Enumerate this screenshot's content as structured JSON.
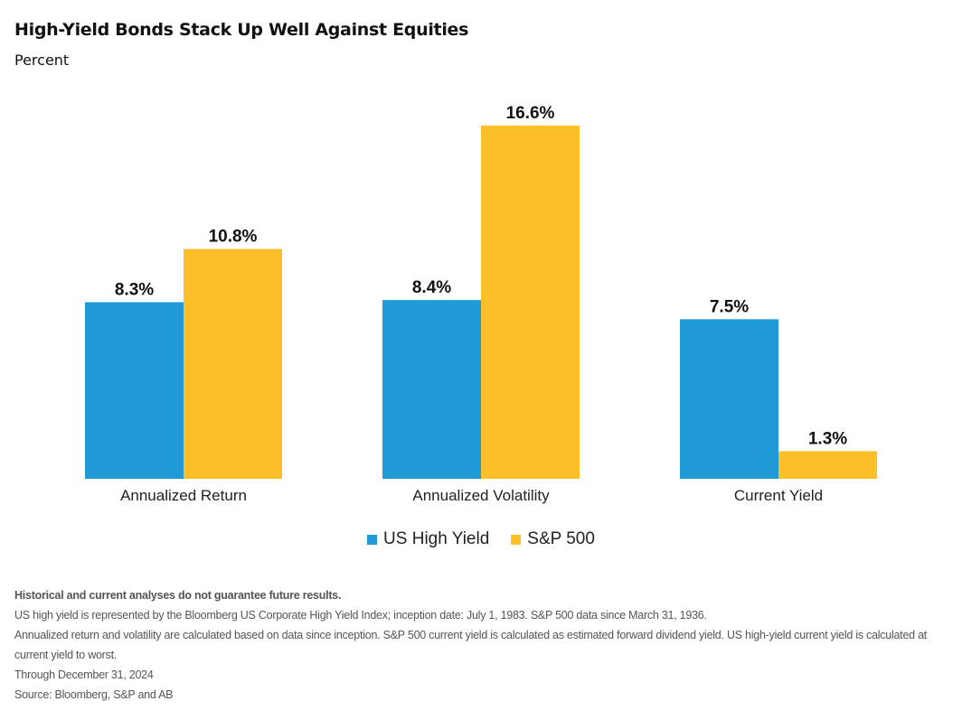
{
  "chart_data": {
    "type": "bar",
    "title": "High-Yield Bonds Stack Up Well Against Equities",
    "subtitle": "Percent",
    "categories": [
      "Annualized Return",
      "Annualized Volatility",
      "Current Yield"
    ],
    "series": [
      {
        "name": "US High Yield",
        "color": "#1f9ad6",
        "values": [
          8.3,
          8.4,
          7.5
        ],
        "labels": [
          "8.3%",
          "8.4%",
          "7.5%"
        ]
      },
      {
        "name": "S&P 500",
        "color": "#fbbf2a",
        "values": [
          10.8,
          16.6,
          1.3
        ],
        "labels": [
          "10.8%",
          "16.6%",
          "1.3%"
        ]
      }
    ],
    "ylim": [
      0,
      16.6
    ],
    "grid": false,
    "legend": "bottom-center"
  },
  "notes": [
    "Historical and current analyses do not guarantee future results.",
    "US high yield is represented by the Bloomberg US Corporate High Yield Index; inception date: July 1, 1983. S&P 500 data since March 31, 1936.",
    "Annualized return and volatility are calculated based on data since inception. S&P 500 current yield is calculated as estimated forward dividend yield. US high-yield current yield is calculated at current yield to worst.",
    "Through December 31, 2024",
    "Source: Bloomberg, S&P and AB"
  ]
}
